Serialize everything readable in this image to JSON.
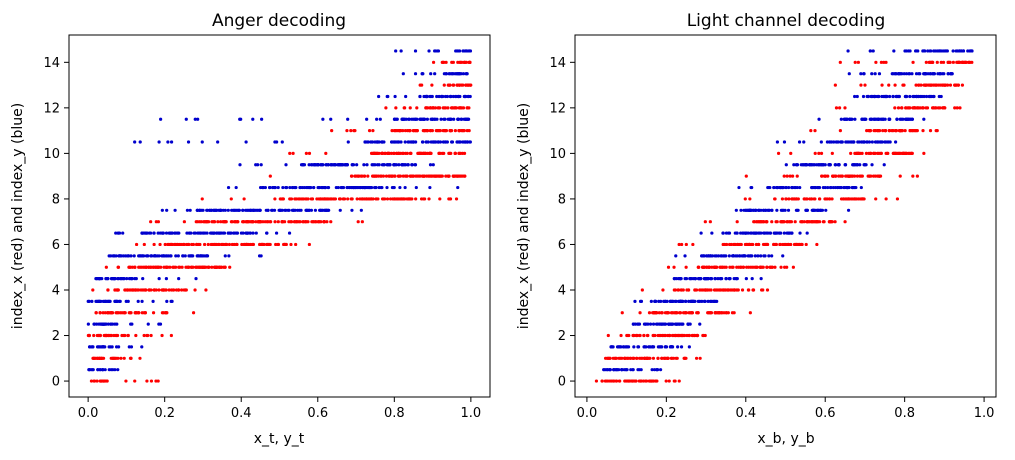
{
  "chart_data": [
    {
      "type": "scatter",
      "title": "Anger decoding",
      "xlabel": "x_t, y_t",
      "ylabel": "index_x (red) and index_y (blue)",
      "xlim": [
        -0.05,
        1.05
      ],
      "ylim": [
        -0.7,
        15.2
      ],
      "xticks": [
        0.0,
        0.2,
        0.4,
        0.6,
        0.8,
        1.0
      ],
      "xtick_labels": [
        "0.0",
        "0.2",
        "0.4",
        "0.6",
        "0.8",
        "1.0"
      ],
      "yticks": [
        0,
        2,
        4,
        6,
        8,
        10,
        12,
        14
      ],
      "ytick_labels": [
        "0",
        "2",
        "4",
        "6",
        "8",
        "10",
        "12",
        "14"
      ],
      "grid": false,
      "marker_size": 1.6,
      "series": [
        {
          "color": "#ff0000",
          "bands": [
            {
              "y": 0,
              "core": [
                0.0,
                0.05
              ],
              "spread": [
                0.0,
                0.21
              ]
            },
            {
              "y": 1,
              "core": [
                0.0,
                0.08
              ],
              "spread": [
                0.0,
                0.16
              ]
            },
            {
              "y": 2,
              "core": [
                0.0,
                0.11
              ],
              "spread": [
                0.0,
                0.24
              ]
            },
            {
              "y": 3,
              "core": [
                0.02,
                0.15
              ],
              "spread": [
                0.0,
                0.3
              ]
            },
            {
              "y": 4,
              "core": [
                0.05,
                0.26
              ],
              "spread": [
                0.0,
                0.4
              ]
            },
            {
              "y": 5,
              "core": [
                0.1,
                0.36
              ],
              "spread": [
                0.03,
                0.45
              ]
            },
            {
              "y": 6,
              "core": [
                0.2,
                0.52
              ],
              "spread": [
                0.12,
                0.62
              ]
            },
            {
              "y": 7,
              "core": [
                0.28,
                0.63
              ],
              "spread": [
                0.16,
                0.74
              ]
            },
            {
              "y": 8,
              "core": [
                0.5,
                0.88
              ],
              "spread": [
                0.29,
                0.97
              ]
            },
            {
              "y": 9,
              "core": [
                0.68,
                0.99
              ],
              "spread": [
                0.47,
                1.0
              ]
            },
            {
              "y": 10,
              "core": [
                0.74,
                1.0
              ],
              "spread": [
                0.52,
                1.0
              ]
            },
            {
              "y": 11,
              "core": [
                0.8,
                1.0
              ],
              "spread": [
                0.62,
                1.0
              ]
            },
            {
              "y": 12,
              "core": [
                0.88,
                1.0
              ],
              "spread": [
                0.76,
                1.0
              ]
            },
            {
              "y": 13,
              "core": [
                0.94,
                1.0
              ],
              "spread": [
                0.86,
                1.0
              ]
            },
            {
              "y": 14,
              "core": [
                0.96,
                1.0
              ],
              "spread": [
                0.88,
                1.0
              ]
            }
          ]
        },
        {
          "color": "#0000cd",
          "bands": [
            {
              "y": 0.5,
              "core": [
                0.0,
                0.04
              ],
              "spread": [
                0.0,
                0.12
              ]
            },
            {
              "y": 1.5,
              "core": [
                0.0,
                0.06
              ],
              "spread": [
                0.0,
                0.17
              ]
            },
            {
              "y": 2.5,
              "core": [
                0.0,
                0.07
              ],
              "spread": [
                0.0,
                0.2
              ]
            },
            {
              "y": 3.5,
              "core": [
                0.0,
                0.09
              ],
              "spread": [
                0.0,
                0.24
              ]
            },
            {
              "y": 4.5,
              "core": [
                0.02,
                0.13
              ],
              "spread": [
                0.0,
                0.3
              ]
            },
            {
              "y": 5.5,
              "core": [
                0.06,
                0.32
              ],
              "spread": [
                0.03,
                0.47
              ]
            },
            {
              "y": 6.5,
              "core": [
                0.14,
                0.44
              ],
              "spread": [
                0.06,
                0.58
              ]
            },
            {
              "y": 7.5,
              "core": [
                0.28,
                0.63
              ],
              "spread": [
                0.16,
                0.72
              ]
            },
            {
              "y": 8.5,
              "core": [
                0.45,
                0.8
              ],
              "spread": [
                0.15,
                0.97
              ]
            },
            {
              "y": 9.5,
              "core": [
                0.56,
                0.86
              ],
              "spread": [
                0.37,
                0.97
              ]
            },
            {
              "y": 10.5,
              "core": [
                0.72,
                1.0
              ],
              "spread": [
                0.08,
                1.0
              ]
            },
            {
              "y": 11.5,
              "core": [
                0.8,
                1.0
              ],
              "spread": [
                0.16,
                1.0
              ]
            },
            {
              "y": 12.5,
              "core": [
                0.88,
                1.0
              ],
              "spread": [
                0.74,
                1.0
              ]
            },
            {
              "y": 13.5,
              "core": [
                0.93,
                1.0
              ],
              "spread": [
                0.82,
                1.0
              ]
            },
            {
              "y": 14.5,
              "core": [
                0.95,
                1.0
              ],
              "spread": [
                0.8,
                1.0
              ]
            }
          ]
        }
      ]
    },
    {
      "type": "scatter",
      "title": "Light channel decoding",
      "xlabel": "x_b, y_b",
      "ylabel": "index_x (red) and index_y (blue)",
      "xlim": [
        -0.03,
        1.03
      ],
      "ylim": [
        -0.7,
        15.2
      ],
      "xticks": [
        0.0,
        0.2,
        0.4,
        0.6,
        0.8,
        1.0
      ],
      "xtick_labels": [
        "0.0",
        "0.2",
        "0.4",
        "0.6",
        "0.8",
        "1.0"
      ],
      "yticks": [
        0,
        2,
        4,
        6,
        8,
        10,
        12,
        14
      ],
      "ytick_labels": [
        "0",
        "2",
        "4",
        "6",
        "8",
        "10",
        "12",
        "14"
      ],
      "grid": false,
      "marker_size": 1.6,
      "series": [
        {
          "color": "#ff0000",
          "bands": [
            {
              "y": 0,
              "core": [
                0.03,
                0.19
              ],
              "spread": [
                0.02,
                0.25
              ]
            },
            {
              "y": 1,
              "core": [
                0.05,
                0.25
              ],
              "spread": [
                0.04,
                0.3
              ]
            },
            {
              "y": 2,
              "core": [
                0.1,
                0.3
              ],
              "spread": [
                0.05,
                0.33
              ]
            },
            {
              "y": 3,
              "core": [
                0.15,
                0.36
              ],
              "spread": [
                0.08,
                0.42
              ]
            },
            {
              "y": 4,
              "core": [
                0.22,
                0.42
              ],
              "spread": [
                0.12,
                0.46
              ]
            },
            {
              "y": 5,
              "core": [
                0.28,
                0.47
              ],
              "spread": [
                0.18,
                0.52
              ]
            },
            {
              "y": 6,
              "core": [
                0.34,
                0.55
              ],
              "spread": [
                0.22,
                0.62
              ]
            },
            {
              "y": 7,
              "core": [
                0.42,
                0.62
              ],
              "spread": [
                0.28,
                0.68
              ]
            },
            {
              "y": 8,
              "core": [
                0.5,
                0.7
              ],
              "spread": [
                0.3,
                0.8
              ]
            },
            {
              "y": 9,
              "core": [
                0.58,
                0.74
              ],
              "spread": [
                0.4,
                0.84
              ]
            },
            {
              "y": 10,
              "core": [
                0.66,
                0.82
              ],
              "spread": [
                0.46,
                0.86
              ]
            },
            {
              "y": 11,
              "core": [
                0.7,
                0.84
              ],
              "spread": [
                0.54,
                0.92
              ]
            },
            {
              "y": 12,
              "core": [
                0.78,
                0.9
              ],
              "spread": [
                0.6,
                0.95
              ]
            },
            {
              "y": 13,
              "core": [
                0.82,
                0.94
              ],
              "spread": [
                0.62,
                0.96
              ]
            },
            {
              "y": 14,
              "core": [
                0.86,
                0.97
              ],
              "spread": [
                0.62,
                0.97
              ]
            }
          ]
        },
        {
          "color": "#0000cd",
          "bands": [
            {
              "y": 0.5,
              "core": [
                0.04,
                0.14
              ],
              "spread": [
                0.03,
                0.19
              ]
            },
            {
              "y": 1.5,
              "core": [
                0.06,
                0.22
              ],
              "spread": [
                0.05,
                0.26
              ]
            },
            {
              "y": 2.5,
              "core": [
                0.11,
                0.26
              ],
              "spread": [
                0.07,
                0.3
              ]
            },
            {
              "y": 3.5,
              "core": [
                0.17,
                0.33
              ],
              "spread": [
                0.12,
                0.38
              ]
            },
            {
              "y": 4.5,
              "core": [
                0.22,
                0.38
              ],
              "spread": [
                0.17,
                0.44
              ]
            },
            {
              "y": 5.5,
              "core": [
                0.28,
                0.45
              ],
              "spread": [
                0.22,
                0.52
              ]
            },
            {
              "y": 6.5,
              "core": [
                0.34,
                0.52
              ],
              "spread": [
                0.28,
                0.58
              ]
            },
            {
              "y": 7.5,
              "core": [
                0.4,
                0.6
              ],
              "spread": [
                0.32,
                0.66
              ]
            },
            {
              "y": 8.5,
              "core": [
                0.45,
                0.68
              ],
              "spread": [
                0.36,
                0.73
              ]
            },
            {
              "y": 9.5,
              "core": [
                0.52,
                0.71
              ],
              "spread": [
                0.44,
                0.76
              ]
            },
            {
              "y": 10.5,
              "core": [
                0.6,
                0.76
              ],
              "spread": [
                0.47,
                0.8
              ]
            },
            {
              "y": 11.5,
              "core": [
                0.64,
                0.82
              ],
              "spread": [
                0.56,
                0.86
              ]
            },
            {
              "y": 12.5,
              "core": [
                0.7,
                0.88
              ],
              "spread": [
                0.62,
                0.9
              ]
            },
            {
              "y": 13.5,
              "core": [
                0.76,
                0.92
              ],
              "spread": [
                0.66,
                0.94
              ]
            },
            {
              "y": 14.5,
              "core": [
                0.8,
                0.97
              ],
              "spread": [
                0.64,
                0.97
              ]
            }
          ]
        }
      ]
    }
  ]
}
